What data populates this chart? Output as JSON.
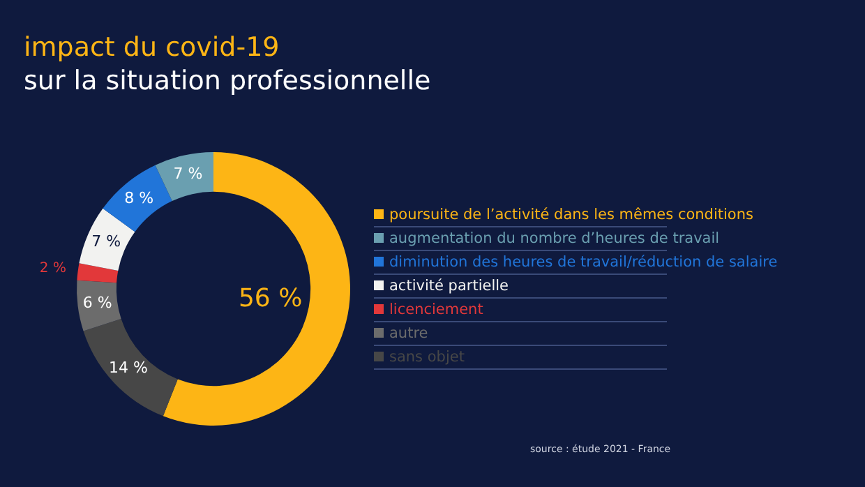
{
  "chart_data": {
    "type": "donut",
    "title": "impact du covid-19",
    "subtitle": "sur la situation professionnelle",
    "categories": [
      "poursuite de l’activité dans les mêmes conditions",
      "augmentation du nombre d’heures de travail",
      "diminution des heures de travail/réduction de salaire",
      "activité partielle",
      "licenciement",
      "autre",
      "sans objet"
    ],
    "values": [
      56,
      7,
      8,
      7,
      2,
      6,
      14
    ],
    "colors": [
      "#fdb515",
      "#6a9fb0",
      "#2175d9",
      "#f2f2f0",
      "#e2383a",
      "#6c6c6c",
      "#474747"
    ],
    "value_labels": [
      "56 %",
      "7 %",
      "8 %",
      "7 %",
      "2 %",
      "6 %",
      "14 %"
    ],
    "legend": "right",
    "annotations": [
      "source : étude 2021 - France"
    ]
  }
}
